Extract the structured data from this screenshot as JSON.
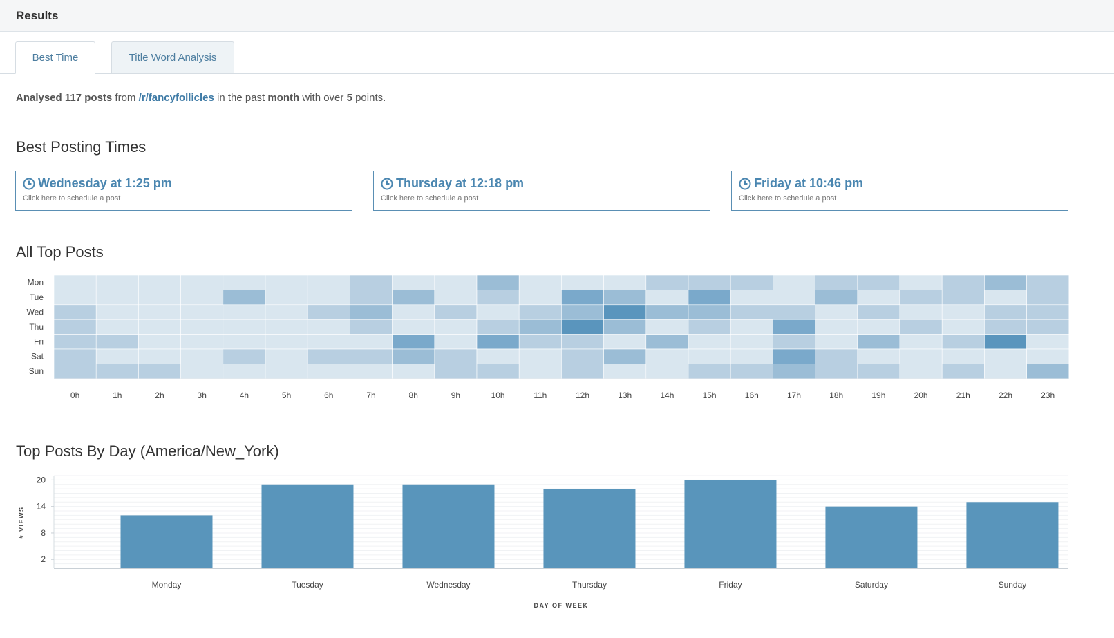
{
  "header": {
    "title": "Results"
  },
  "tabs": [
    {
      "label": "Best Time"
    },
    {
      "label": "Title Word Analysis"
    }
  ],
  "summary": {
    "analysed": "Analysed",
    "count": "117 posts",
    "from": "from",
    "subreddit": "/r/fancyfollicles",
    "in_past": "in the past",
    "period": "month",
    "with_over": "with over",
    "points_value": "5",
    "points_label": "points."
  },
  "best_times": {
    "heading": "Best Posting Times",
    "cards": [
      {
        "time": "Wednesday at 1:25 pm",
        "sub": "Click here to schedule a post",
        "icon": "clock-icon"
      },
      {
        "time": "Thursday at 12:18 pm",
        "sub": "Click here to schedule a post",
        "icon": "clock-icon"
      },
      {
        "time": "Friday at 10:46 pm",
        "sub": "Click here to schedule a post",
        "icon": "clock-icon"
      }
    ]
  },
  "heatmap": {
    "heading": "All Top Posts",
    "days": [
      "Mon",
      "Tue",
      "Wed",
      "Thu",
      "Fri",
      "Sat",
      "Sun"
    ],
    "hours": [
      "0h",
      "1h",
      "2h",
      "3h",
      "4h",
      "5h",
      "6h",
      "7h",
      "8h",
      "9h",
      "10h",
      "11h",
      "12h",
      "13h",
      "14h",
      "15h",
      "16h",
      "17h",
      "18h",
      "19h",
      "20h",
      "21h",
      "22h",
      "23h"
    ],
    "levels": [
      [
        0,
        0,
        0,
        0,
        0,
        0,
        0,
        1,
        0,
        0,
        2,
        0,
        0,
        0,
        1,
        1,
        1,
        0,
        1,
        1,
        0,
        1,
        2,
        1
      ],
      [
        0,
        0,
        0,
        0,
        2,
        0,
        0,
        1,
        2,
        0,
        1,
        0,
        3,
        2,
        0,
        3,
        0,
        0,
        2,
        0,
        1,
        1,
        0,
        1
      ],
      [
        1,
        0,
        0,
        0,
        0,
        0,
        1,
        2,
        0,
        1,
        0,
        1,
        2,
        4,
        2,
        2,
        1,
        1,
        0,
        1,
        0,
        0,
        1,
        1
      ],
      [
        1,
        0,
        0,
        0,
        0,
        0,
        0,
        1,
        0,
        0,
        1,
        2,
        4,
        2,
        0,
        1,
        0,
        3,
        0,
        0,
        1,
        0,
        1,
        1
      ],
      [
        1,
        1,
        0,
        0,
        0,
        0,
        0,
        0,
        3,
        0,
        3,
        1,
        1,
        0,
        2,
        0,
        0,
        1,
        0,
        2,
        0,
        1,
        4,
        0
      ],
      [
        1,
        0,
        0,
        0,
        1,
        0,
        1,
        1,
        2,
        1,
        0,
        0,
        1,
        2,
        0,
        0,
        0,
        3,
        1,
        0,
        0,
        0,
        0,
        0
      ],
      [
        1,
        1,
        1,
        0,
        0,
        0,
        0,
        0,
        0,
        1,
        1,
        0,
        1,
        0,
        0,
        1,
        1,
        2,
        1,
        1,
        0,
        1,
        0,
        2
      ]
    ],
    "colors": [
      "#d9e6ef",
      "#b8cfe1",
      "#9bbdd6",
      "#7aa9cb",
      "#5a95bd"
    ]
  },
  "chart_data": {
    "type": "bar",
    "title": "Top Posts By Day (America/New_York)",
    "categories": [
      "Monday",
      "Tuesday",
      "Wednesday",
      "Thursday",
      "Friday",
      "Saturday",
      "Sunday"
    ],
    "values": [
      12,
      19,
      19,
      18,
      20,
      14,
      15
    ],
    "xlabel": "DAY OF WEEK",
    "ylabel": "# VIEWS",
    "yticks": [
      "2",
      "8",
      "14",
      "20"
    ],
    "ylim": [
      0,
      21
    ],
    "bar_color": "#5995bb",
    "grid": true
  }
}
